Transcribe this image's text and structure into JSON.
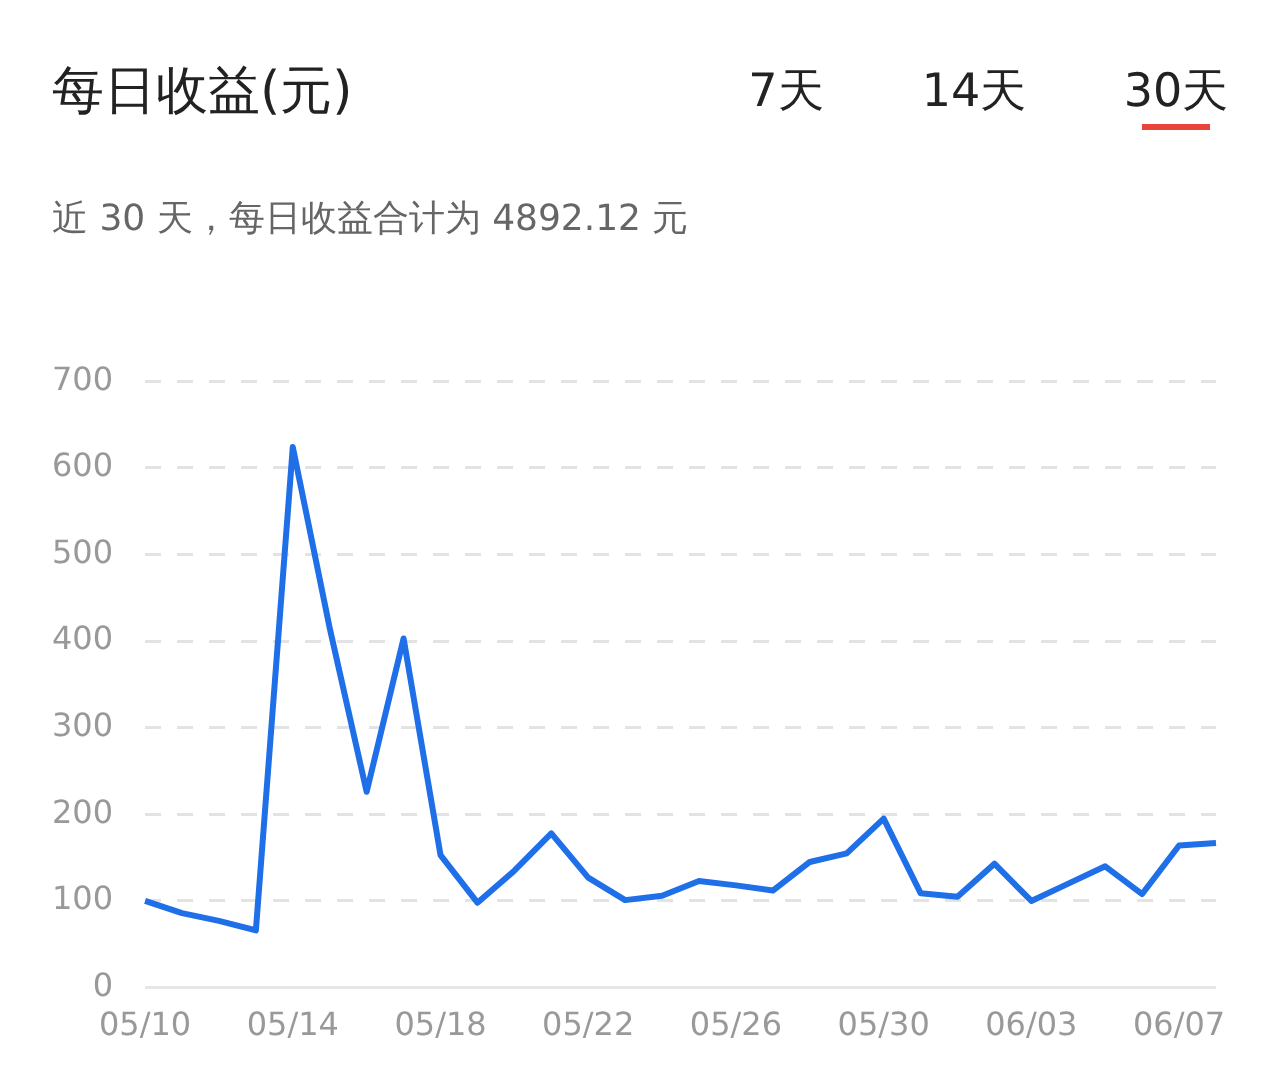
{
  "chart_data": {
    "type": "line",
    "title": "每日收益(元)",
    "subtitle": "近 30 天，每日收益合计为 4892.12 元",
    "annotations": [
      "7天",
      "14天",
      "30天"
    ],
    "categories": [
      "05/10",
      null,
      null,
      null,
      "05/14",
      null,
      null,
      null,
      "05/18",
      null,
      null,
      null,
      "05/22",
      null,
      null,
      null,
      "05/26",
      null,
      null,
      null,
      "05/30",
      null,
      null,
      null,
      "06/03",
      null,
      null,
      null,
      "06/07",
      null
    ],
    "series": [
      {
        "color": "#1f6fe8",
        "values": [
          100,
          86,
          77,
          66,
          624,
          415,
          226,
          403,
          153,
          98,
          135,
          178,
          127,
          101,
          106,
          123,
          118,
          112,
          145,
          155,
          195,
          109,
          105,
          143,
          100,
          120,
          140,
          108,
          164,
          167
        ]
      }
    ],
    "ylim": [
      0,
      700
    ],
    "yticks": [
      0,
      100,
      200,
      300,
      400,
      500,
      600,
      700
    ],
    "grid": "y",
    "legend": false,
    "marker": "none",
    "line_style": "solid"
  }
}
